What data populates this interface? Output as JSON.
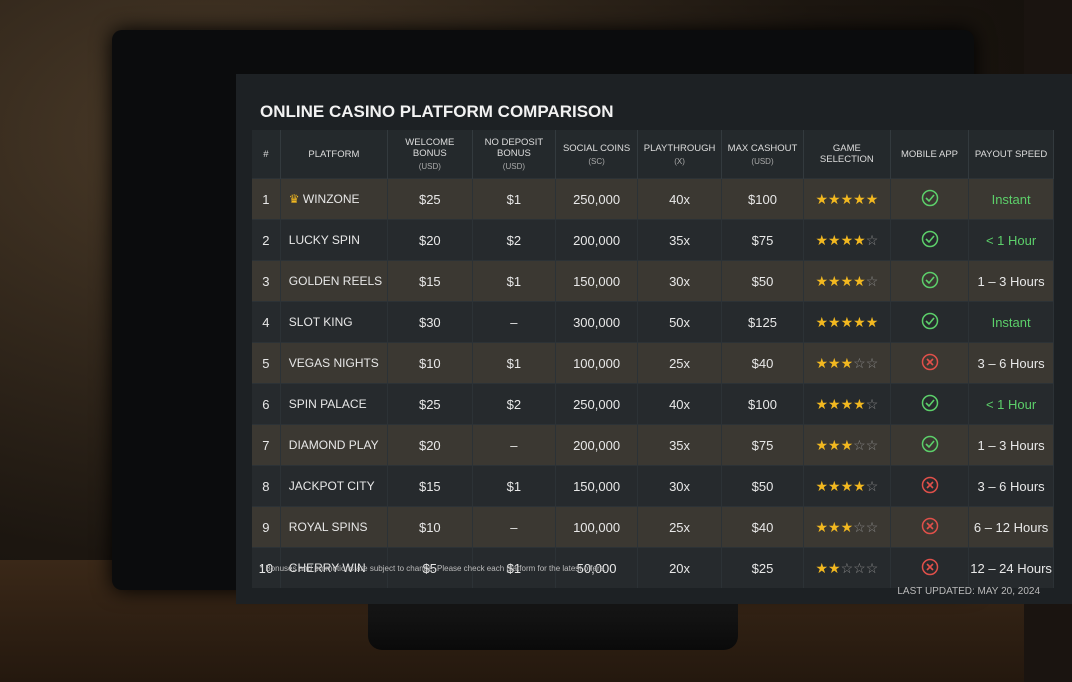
{
  "title": "ONLINE CASINO PLATFORM COMPARISON",
  "table": {
    "headers": [
      {
        "label": "#"
      },
      {
        "label": "PLATFORM"
      },
      {
        "label": "WELCOME BONUS",
        "sub": "(USD)"
      },
      {
        "label": "NO DEPOSIT BONUS",
        "sub": "(USD)"
      },
      {
        "label": "SOCIAL COINS",
        "sub": "(SC)"
      },
      {
        "label": "PLAYTHROUGH",
        "sub": "(X)"
      },
      {
        "label": "MAX CASHOUT",
        "sub": "(USD)"
      },
      {
        "label": "GAME SELECTION"
      },
      {
        "label": "MOBILE APP"
      },
      {
        "label": "PAYOUT SPEED"
      }
    ],
    "rows": [
      {
        "rank": 1,
        "platform": "WINZONE",
        "crown": true,
        "welcome": "$25",
        "no_deposit": "$1",
        "coins": "250,000",
        "playthrough": "40x",
        "max_cashout": "$100",
        "rating": 5,
        "mobile_app": true,
        "payout": "Instant",
        "payout_fast": true
      },
      {
        "rank": 2,
        "platform": "LUCKY SPIN",
        "welcome": "$20",
        "no_deposit": "$2",
        "coins": "200,000",
        "playthrough": "35x",
        "max_cashout": "$75",
        "rating": 4,
        "mobile_app": true,
        "payout": "< 1 Hour",
        "payout_fast": true
      },
      {
        "rank": 3,
        "platform": "GOLDEN REELS",
        "welcome": "$15",
        "no_deposit": "$1",
        "coins": "150,000",
        "playthrough": "30x",
        "max_cashout": "$50",
        "rating": 4,
        "mobile_app": true,
        "payout": "1 – 3 Hours"
      },
      {
        "rank": 4,
        "platform": "SLOT KING",
        "welcome": "$30",
        "no_deposit": "–",
        "coins": "300,000",
        "playthrough": "50x",
        "max_cashout": "$125",
        "rating": 5,
        "mobile_app": true,
        "payout": "Instant",
        "payout_fast": true
      },
      {
        "rank": 5,
        "platform": "VEGAS NIGHTS",
        "welcome": "$10",
        "no_deposit": "$1",
        "coins": "100,000",
        "playthrough": "25x",
        "max_cashout": "$40",
        "rating": 3,
        "mobile_app": false,
        "payout": "3 – 6 Hours"
      },
      {
        "rank": 6,
        "platform": "SPIN PALACE",
        "welcome": "$25",
        "no_deposit": "$2",
        "coins": "250,000",
        "playthrough": "40x",
        "max_cashout": "$100",
        "rating": 4,
        "mobile_app": true,
        "payout": "< 1 Hour",
        "payout_fast": true
      },
      {
        "rank": 7,
        "platform": "DIAMOND PLAY",
        "welcome": "$20",
        "no_deposit": "–",
        "coins": "200,000",
        "playthrough": "35x",
        "max_cashout": "$75",
        "rating": 3,
        "mobile_app": true,
        "payout": "1 – 3 Hours"
      },
      {
        "rank": 8,
        "platform": "JACKPOT CITY",
        "welcome": "$15",
        "no_deposit": "$1",
        "coins": "150,000",
        "playthrough": "30x",
        "max_cashout": "$50",
        "rating": 4,
        "mobile_app": false,
        "payout": "3 – 6 Hours"
      },
      {
        "rank": 9,
        "platform": "ROYAL SPINS",
        "welcome": "$10",
        "no_deposit": "–",
        "coins": "100,000",
        "playthrough": "25x",
        "max_cashout": "$40",
        "rating": 3,
        "mobile_app": false,
        "payout": "6 – 12 Hours"
      },
      {
        "rank": 10,
        "platform": "CHERRY WIN",
        "welcome": "$5",
        "no_deposit": "$1",
        "coins": "50,000",
        "playthrough": "20x",
        "max_cashout": "$25",
        "rating": 2,
        "mobile_app": false,
        "payout": "12 – 24 Hours"
      }
    ]
  },
  "footnote": "* Bonuses and promotions are subject to change. Please check each platform for the latest offers.",
  "last_updated": "LAST UPDATED: MAY 20, 2024"
}
